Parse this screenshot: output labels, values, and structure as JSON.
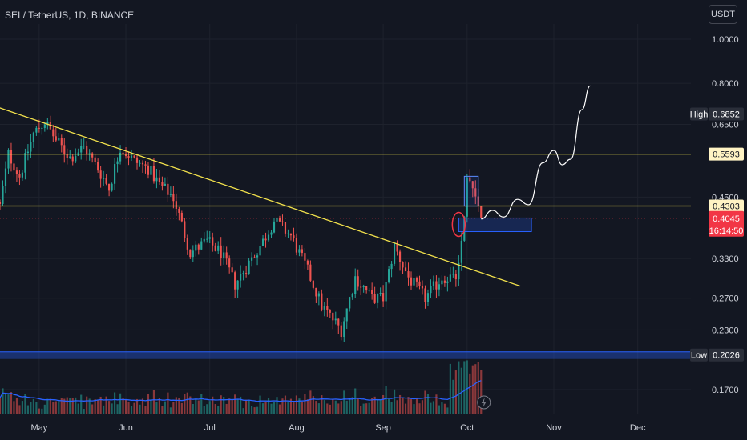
{
  "header": {
    "symbol": "SEI / TetherUS, 1D, BINANCE",
    "currency": "USDT"
  },
  "colors": {
    "background": "#131722",
    "up": "#26a69a",
    "down": "#ef5350",
    "trendline": "#f2e14c",
    "level_line": "#f2e14c",
    "support_band": "#2962ff",
    "volume_ma": "#2962ff",
    "projection": "#ffffff",
    "price_tag": "#f23645"
  },
  "axis": {
    "price_ticks": [
      "1.0000",
      "0.8000",
      "0.6500",
      "0.4500",
      "0.3300",
      "0.2700",
      "0.2300",
      "0.1700"
    ],
    "month_labels": [
      "May",
      "Jun",
      "Jul",
      "Aug",
      "Sep",
      "Oct",
      "Nov",
      "Dec"
    ]
  },
  "tags": {
    "high_label": "High",
    "high_value": "0.6852",
    "level_upper": "0.5593",
    "level_lower": "0.4303",
    "current_price": "0.4045",
    "countdown": "16:14:50",
    "low_label": "Low",
    "low_value": "0.2026"
  },
  "chart_data": {
    "type": "candlestick",
    "log_scale": true,
    "ylim": [
      0.15,
      1.08
    ],
    "x_range": [
      "2023-04-17",
      "2023-12-20"
    ],
    "levels": {
      "high": 0.6852,
      "resistance": 0.5593,
      "breakout": 0.4303,
      "current": 0.4045,
      "low": 0.2026
    },
    "trendline": {
      "start": {
        "date": "2023-04-16",
        "price": 0.71
      },
      "end": {
        "date": "2023-10-20",
        "price": 0.287
      }
    },
    "demand_zone": {
      "from": "2023-09-28",
      "to": "2023-10-24",
      "low": 0.378,
      "high": 0.405
    },
    "projection": [
      {
        "date": "2023-10-06",
        "price": 0.403
      },
      {
        "date": "2023-10-10",
        "price": 0.421
      },
      {
        "date": "2023-10-14",
        "price": 0.407
      },
      {
        "date": "2023-10-19",
        "price": 0.445
      },
      {
        "date": "2023-10-23",
        "price": 0.433
      },
      {
        "date": "2023-10-28",
        "price": 0.535
      },
      {
        "date": "2023-11-01",
        "price": 0.57
      },
      {
        "date": "2023-11-04",
        "price": 0.53
      },
      {
        "date": "2023-11-07",
        "price": 0.545
      },
      {
        "date": "2023-11-11",
        "price": 0.7
      },
      {
        "date": "2023-11-14",
        "price": 0.79
      }
    ],
    "anchors": [
      {
        "date": "2023-04-17",
        "close": 0.43
      },
      {
        "date": "2023-04-20",
        "close": 0.56
      },
      {
        "date": "2023-04-24",
        "close": 0.5
      },
      {
        "date": "2023-04-29",
        "close": 0.62
      },
      {
        "date": "2023-05-03",
        "close": 0.66
      },
      {
        "date": "2023-05-07",
        "close": 0.6
      },
      {
        "date": "2023-05-12",
        "close": 0.55
      },
      {
        "date": "2023-05-17",
        "close": 0.58
      },
      {
        "date": "2023-05-22",
        "close": 0.52
      },
      {
        "date": "2023-05-26",
        "close": 0.47
      },
      {
        "date": "2023-05-30",
        "close": 0.58
      },
      {
        "date": "2023-06-04",
        "close": 0.54
      },
      {
        "date": "2023-06-09",
        "close": 0.52
      },
      {
        "date": "2023-06-13",
        "close": 0.48
      },
      {
        "date": "2023-06-18",
        "close": 0.45
      },
      {
        "date": "2023-06-20",
        "close": 0.41
      },
      {
        "date": "2023-06-24",
        "close": 0.34
      },
      {
        "date": "2023-06-30",
        "close": 0.36
      },
      {
        "date": "2023-07-05",
        "close": 0.34
      },
      {
        "date": "2023-07-10",
        "close": 0.29
      },
      {
        "date": "2023-07-16",
        "close": 0.33
      },
      {
        "date": "2023-07-20",
        "close": 0.36
      },
      {
        "date": "2023-07-24",
        "close": 0.4
      },
      {
        "date": "2023-07-30",
        "close": 0.37
      },
      {
        "date": "2023-08-05",
        "close": 0.31
      },
      {
        "date": "2023-08-10",
        "close": 0.26
      },
      {
        "date": "2023-08-17",
        "close": 0.23
      },
      {
        "date": "2023-08-22",
        "close": 0.3
      },
      {
        "date": "2023-08-28",
        "close": 0.27
      },
      {
        "date": "2023-09-01",
        "close": 0.27
      },
      {
        "date": "2023-09-05",
        "close": 0.35
      },
      {
        "date": "2023-09-10",
        "close": 0.3
      },
      {
        "date": "2023-09-16",
        "close": 0.27
      },
      {
        "date": "2023-09-22",
        "close": 0.3
      },
      {
        "date": "2023-09-27",
        "close": 0.3
      },
      {
        "date": "2023-09-29",
        "close": 0.36
      },
      {
        "date": "2023-10-01",
        "close": 0.49
      },
      {
        "date": "2023-10-03",
        "close": 0.48
      },
      {
        "date": "2023-10-05",
        "close": 0.43
      },
      {
        "date": "2023-10-06",
        "close": 0.4045
      }
    ]
  }
}
